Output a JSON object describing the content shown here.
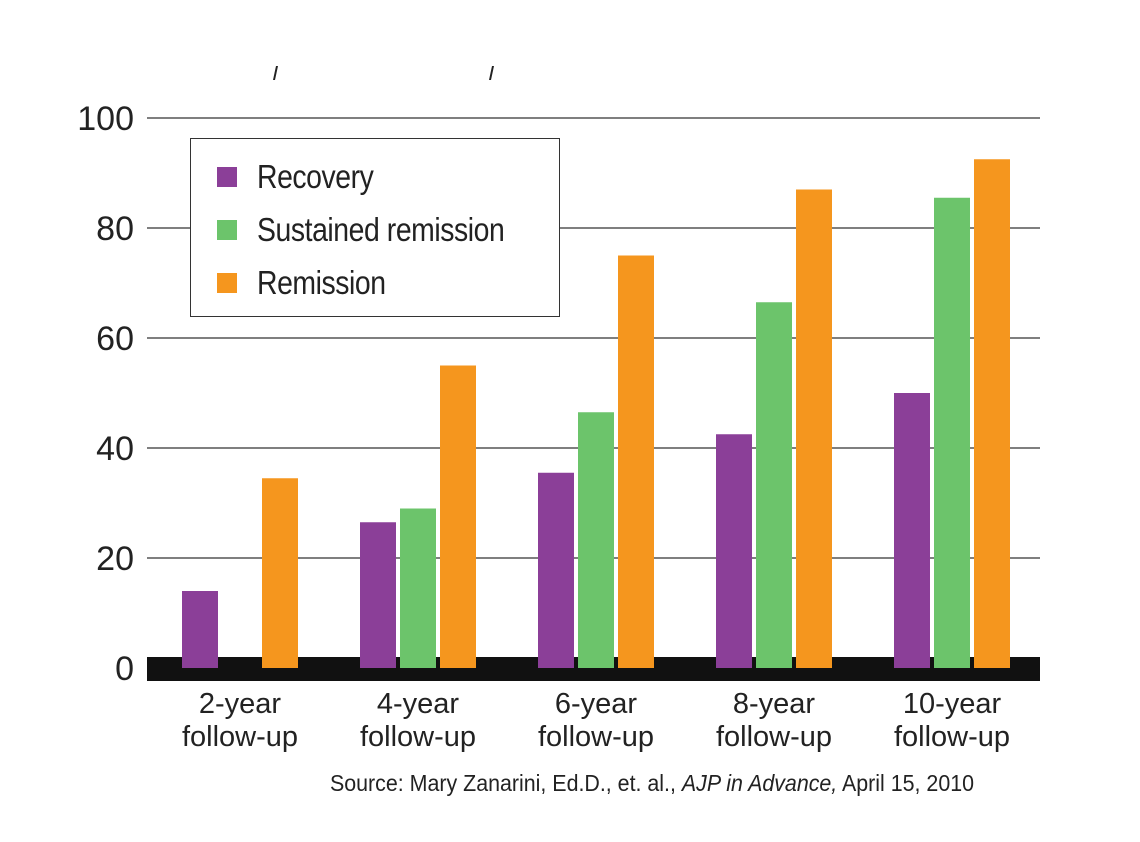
{
  "colors": {
    "recovery": "#8b3f98",
    "sustained": "#6cc46b",
    "remission": "#f5961e",
    "baseline": "#111111",
    "grid": "#555555"
  },
  "chart_data": {
    "type": "bar",
    "title": "",
    "xlabel": "",
    "ylabel": "",
    "ylim": [
      0,
      100
    ],
    "yticks": [
      "0",
      "20",
      "40",
      "60",
      "80",
      "100"
    ],
    "categories": [
      [
        "2-year",
        "follow-up"
      ],
      [
        "4-year",
        "follow-up"
      ],
      [
        "6-year",
        "follow-up"
      ],
      [
        "8-year",
        "follow-up"
      ],
      [
        "10-year",
        "follow-up"
      ]
    ],
    "series": [
      {
        "name": "Recovery",
        "color": "#8b3f98",
        "values": [
          14,
          26.5,
          35.5,
          42.5,
          50
        ]
      },
      {
        "name": "Sustained remission",
        "color": "#6cc46b",
        "values": [
          0,
          29,
          46.5,
          66.5,
          85.5
        ]
      },
      {
        "name": "Remission",
        "color": "#f5961e",
        "values": [
          34.5,
          55,
          75,
          87,
          92.5
        ]
      }
    ],
    "grid": true,
    "legend_position": "top-left"
  },
  "legend": {
    "items": [
      {
        "label": "Recovery",
        "color": "#8b3f98"
      },
      {
        "label": "Sustained remission",
        "color": "#6cc46b"
      },
      {
        "label": "Remission",
        "color": "#f5961e"
      }
    ]
  },
  "source": {
    "prefix": "Source: Mary Zanarini, Ed.D., et. al., ",
    "journal": "AJP in Advance,",
    "suffix": " April 15, 2010"
  }
}
